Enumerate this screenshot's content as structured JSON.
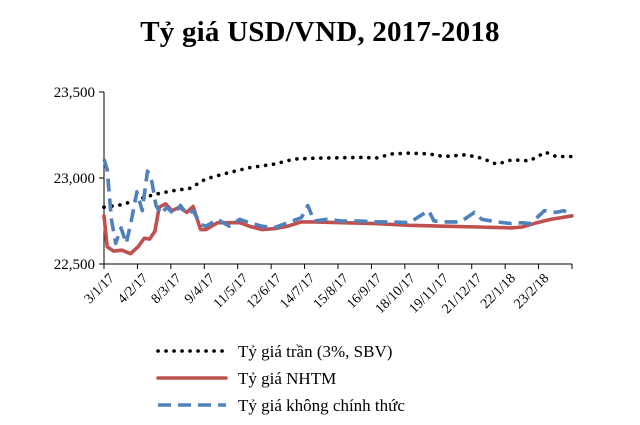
{
  "chart_data": {
    "type": "line",
    "title": "Tỷ giá USD/VND, 2017-2018",
    "xlabel": "",
    "ylabel": "",
    "ylim": [
      22500,
      23500
    ],
    "yticks": [
      "22,500",
      "23,000",
      "23,500"
    ],
    "yticks_values": [
      22500,
      23000,
      23500
    ],
    "xticks": [
      "3/1/17",
      "4/2/17",
      "8/3/17",
      "9/4/17",
      "11/5/17",
      "12/6/17",
      "14/7/17",
      "15/8/17",
      "16/9/17",
      "18/10/17",
      "19/11/17",
      "21/12/17",
      "22/1/18",
      "23/2/18"
    ],
    "x_range": [
      "2017-01-03",
      "2018-03-20"
    ],
    "grid": false,
    "legend_position": "bottom",
    "series": [
      {
        "name": "Tỷ giá trần (3%, SBV)",
        "color": "#000000",
        "style": "dotted",
        "points": [
          [
            "2017-01-03",
            22830
          ],
          [
            "2017-01-20",
            22845
          ],
          [
            "2017-02-04",
            22875
          ],
          [
            "2017-02-20",
            22905
          ],
          [
            "2017-03-08",
            22925
          ],
          [
            "2017-03-25",
            22940
          ],
          [
            "2017-04-09",
            22995
          ],
          [
            "2017-04-30",
            23030
          ],
          [
            "2017-05-20",
            23060
          ],
          [
            "2017-06-12",
            23080
          ],
          [
            "2017-07-01",
            23110
          ],
          [
            "2017-07-20",
            23115
          ],
          [
            "2017-08-15",
            23118
          ],
          [
            "2017-09-05",
            23120
          ],
          [
            "2017-09-16",
            23115
          ],
          [
            "2017-10-01",
            23140
          ],
          [
            "2017-10-18",
            23145
          ],
          [
            "2017-11-05",
            23140
          ],
          [
            "2017-11-19",
            23125
          ],
          [
            "2017-12-10",
            23135
          ],
          [
            "2017-12-25",
            23115
          ],
          [
            "2018-01-08",
            23080
          ],
          [
            "2018-01-22",
            23105
          ],
          [
            "2018-02-08",
            23100
          ],
          [
            "2018-02-23",
            23150
          ],
          [
            "2018-03-05",
            23125
          ],
          [
            "2018-03-20",
            23125
          ]
        ]
      },
      {
        "name": "Tỷ giá NHTM",
        "color": "#c0504d",
        "style": "solid",
        "points": [
          [
            "2017-01-03",
            22780
          ],
          [
            "2017-01-06",
            22600
          ],
          [
            "2017-01-12",
            22575
          ],
          [
            "2017-01-20",
            22580
          ],
          [
            "2017-01-28",
            22560
          ],
          [
            "2017-02-04",
            22600
          ],
          [
            "2017-02-10",
            22650
          ],
          [
            "2017-02-15",
            22645
          ],
          [
            "2017-02-20",
            22690
          ],
          [
            "2017-02-24",
            22830
          ],
          [
            "2017-03-02",
            22850
          ],
          [
            "2017-03-08",
            22810
          ],
          [
            "2017-03-15",
            22830
          ],
          [
            "2017-03-22",
            22800
          ],
          [
            "2017-03-28",
            22835
          ],
          [
            "2017-04-04",
            22700
          ],
          [
            "2017-04-09",
            22700
          ],
          [
            "2017-04-20",
            22740
          ],
          [
            "2017-05-11",
            22740
          ],
          [
            "2017-05-20",
            22720
          ],
          [
            "2017-06-01",
            22700
          ],
          [
            "2017-06-12",
            22705
          ],
          [
            "2017-06-25",
            22720
          ],
          [
            "2017-07-08",
            22745
          ],
          [
            "2017-07-20",
            22745
          ],
          [
            "2017-08-15",
            22740
          ],
          [
            "2017-09-16",
            22735
          ],
          [
            "2017-10-18",
            22725
          ],
          [
            "2017-11-19",
            22720
          ],
          [
            "2017-12-21",
            22715
          ],
          [
            "2018-01-22",
            22710
          ],
          [
            "2018-02-01",
            22715
          ],
          [
            "2018-02-15",
            22740
          ],
          [
            "2018-02-28",
            22760
          ],
          [
            "2018-03-10",
            22770
          ],
          [
            "2018-03-20",
            22780
          ]
        ]
      },
      {
        "name": "Tỷ giá không chính thức",
        "color": "#4f81bd",
        "style": "dashed",
        "points": [
          [
            "2017-01-03",
            23110
          ],
          [
            "2017-01-06",
            23050
          ],
          [
            "2017-01-10",
            22760
          ],
          [
            "2017-01-14",
            22620
          ],
          [
            "2017-01-19",
            22710
          ],
          [
            "2017-01-24",
            22620
          ],
          [
            "2017-01-29",
            22760
          ],
          [
            "2017-02-03",
            22920
          ],
          [
            "2017-02-08",
            22810
          ],
          [
            "2017-02-13",
            23040
          ],
          [
            "2017-02-17",
            22980
          ],
          [
            "2017-02-21",
            22840
          ],
          [
            "2017-02-26",
            22790
          ],
          [
            "2017-03-03",
            22830
          ],
          [
            "2017-03-10",
            22790
          ],
          [
            "2017-03-16",
            22840
          ],
          [
            "2017-03-22",
            22790
          ],
          [
            "2017-03-28",
            22810
          ],
          [
            "2017-04-04",
            22730
          ],
          [
            "2017-04-09",
            22720
          ],
          [
            "2017-04-20",
            22760
          ],
          [
            "2017-05-01",
            22720
          ],
          [
            "2017-05-11",
            22760
          ],
          [
            "2017-05-20",
            22740
          ],
          [
            "2017-06-01",
            22720
          ],
          [
            "2017-06-12",
            22710
          ],
          [
            "2017-06-25",
            22740
          ],
          [
            "2017-07-08",
            22770
          ],
          [
            "2017-07-14",
            22840
          ],
          [
            "2017-07-20",
            22750
          ],
          [
            "2017-08-01",
            22760
          ],
          [
            "2017-08-15",
            22750
          ],
          [
            "2017-09-01",
            22750
          ],
          [
            "2017-09-16",
            22745
          ],
          [
            "2017-10-01",
            22745
          ],
          [
            "2017-10-18",
            22740
          ],
          [
            "2017-10-28",
            22780
          ],
          [
            "2017-11-05",
            22810
          ],
          [
            "2017-11-10",
            22750
          ],
          [
            "2017-11-19",
            22745
          ],
          [
            "2017-12-05",
            22745
          ],
          [
            "2017-12-18",
            22800
          ],
          [
            "2017-12-25",
            22760
          ],
          [
            "2018-01-08",
            22745
          ],
          [
            "2018-01-22",
            22735
          ],
          [
            "2018-02-01",
            22740
          ],
          [
            "2018-02-08",
            22735
          ],
          [
            "2018-02-15",
            22770
          ],
          [
            "2018-02-22",
            22810
          ],
          [
            "2018-03-05",
            22800
          ],
          [
            "2018-03-12",
            22810
          ],
          [
            "2018-03-20",
            22790
          ]
        ]
      }
    ]
  }
}
